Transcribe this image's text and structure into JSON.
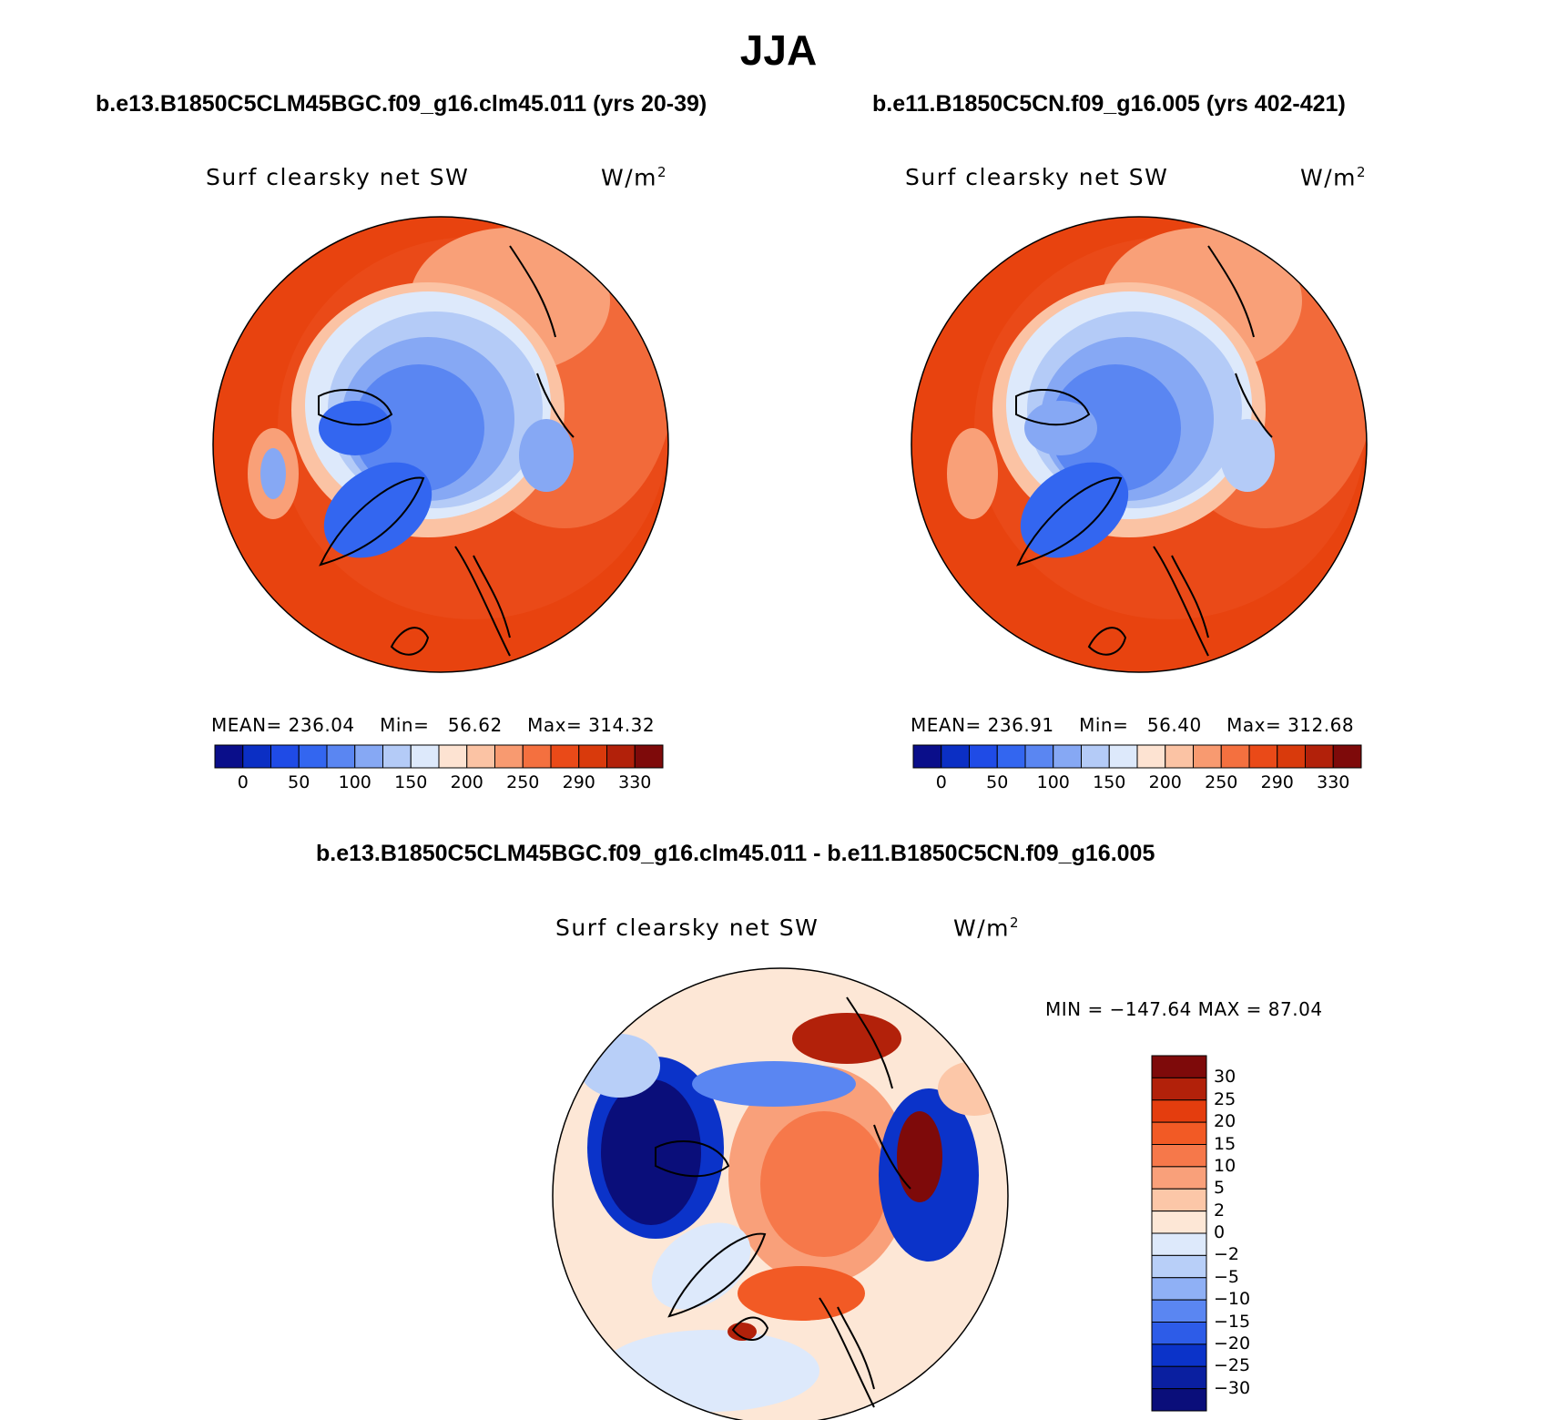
{
  "figure": {
    "season": "JJA",
    "panel_left": {
      "case_title": "b.e13.B1850C5CLM45BGC.f09_g16.clm45.011 (yrs 20-39)",
      "variable": "Surf clearsky net SW",
      "units": "W/m",
      "units_exponent": "2",
      "mean_label": "MEAN=",
      "mean_value": "236.04",
      "min_label": "Min=",
      "min_value": "56.62",
      "max_label": "Max=",
      "max_value": "314.32"
    },
    "panel_right": {
      "case_title": "b.e11.B1850C5CN.f09_g16.005 (yrs 402-421)",
      "variable": "Surf clearsky net SW",
      "units": "W/m",
      "units_exponent": "2",
      "mean_label": "MEAN=",
      "mean_value": "236.91",
      "min_label": "Min=",
      "min_value": "56.40",
      "max_label": "Max=",
      "max_value": "312.68"
    },
    "panel_diff": {
      "case_title": "b.e13.B1850C5CLM45BGC.f09_g16.clm45.011 - b.e11.B1850C5CN.f09_g16.005",
      "variable": "Surf clearsky net SW",
      "units": "W/m",
      "units_exponent": "2",
      "minmax_text": "MIN = −147.64 MAX =   87.04"
    },
    "colorbar_abs": {
      "tick_labels": [
        "0",
        "50",
        "100",
        "150",
        "200",
        "250",
        "290",
        "330"
      ],
      "colors": [
        "#0a0e8a",
        "#0b2fc4",
        "#1f4be6",
        "#3366f0",
        "#5a86f2",
        "#86a8f4",
        "#b4cbf7",
        "#dde9fb",
        "#fde3d2",
        "#fbc3a4",
        "#f89a70",
        "#f4703f",
        "#ea4a18",
        "#d93a0c",
        "#b2210a",
        "#7e0a0a"
      ]
    },
    "colorbar_diff": {
      "tick_labels": [
        "30",
        "25",
        "20",
        "15",
        "10",
        "5",
        "2",
        "0",
        "−2",
        "−5",
        "−10",
        "−15",
        "−20",
        "−25",
        "−30"
      ],
      "colors": [
        "#7e0a0a",
        "#b2210a",
        "#e43d0e",
        "#f25a25",
        "#f6784a",
        "#f9a07a",
        "#fcc7a8",
        "#fde7d6",
        "#dde9fb",
        "#b8cff8",
        "#8fb0f5",
        "#5a86f2",
        "#2d5ce8",
        "#0b33c9",
        "#0a1fa0",
        "#0a0e7a"
      ]
    }
  }
}
